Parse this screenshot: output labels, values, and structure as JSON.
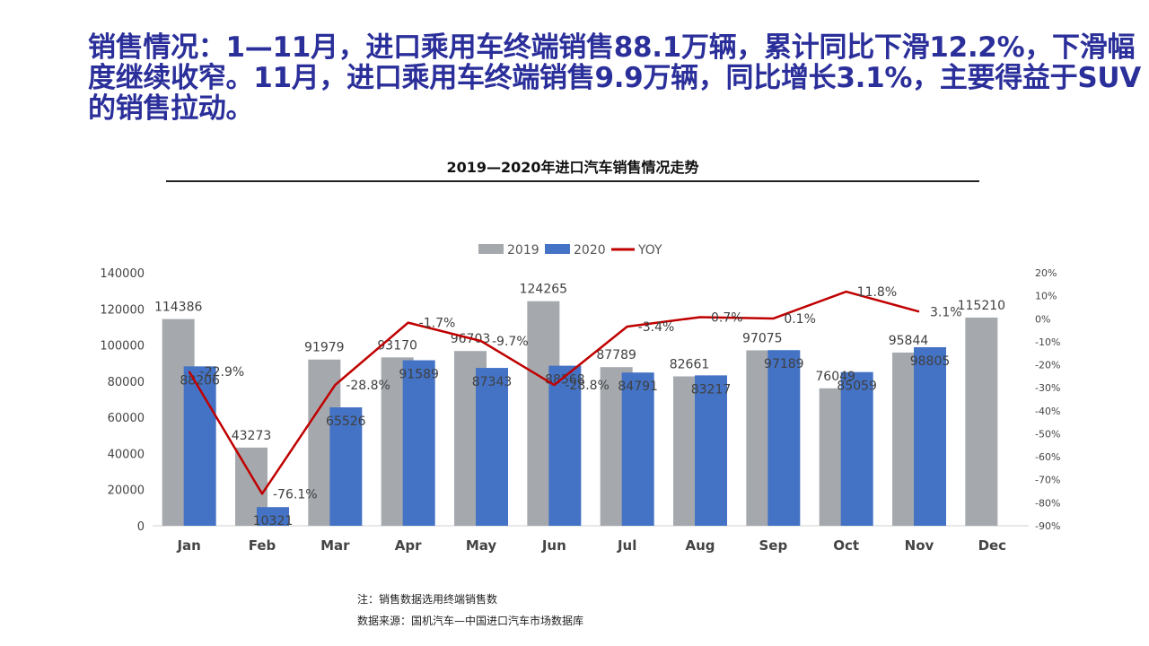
{
  "headline": "销售情况：1—11月，进口乘用车终端销售88.1万辆，累计同比下滑12.2%，下滑幅度继续收窄。11月，进口乘用车终端销售9.9万辆，同比增长3.1%，主要得益于SUV的销售拉动。",
  "notes": {
    "note": "注：销售数据选用终端销售数",
    "source": "数据来源：国机汽车—中国进口汽车市场数据库"
  },
  "chart_data": {
    "type": "bar",
    "title": "2019—2020年进口汽车销售情况走势",
    "categories": [
      "Jan",
      "Feb",
      "Mar",
      "Apr",
      "May",
      "Jun",
      "Jul",
      "Aug",
      "Sep",
      "Oct",
      "Nov",
      "Dec"
    ],
    "series": [
      {
        "name": "2019",
        "type": "bar",
        "color": "#a5a9ae",
        "values": [
          114386,
          43273,
          91979,
          93170,
          96703,
          124265,
          87789,
          82661,
          97075,
          76049,
          95844,
          115210
        ]
      },
      {
        "name": "2020",
        "type": "bar",
        "color": "#4472c4",
        "values": [
          88206,
          10321,
          65526,
          91589,
          87343,
          88568,
          84791,
          83217,
          97189,
          85059,
          98805,
          null
        ]
      },
      {
        "name": "YOY",
        "type": "line",
        "axis": "right",
        "color": "#c00000",
        "values": [
          -22.9,
          -76.1,
          -28.8,
          -1.7,
          -9.7,
          -28.8,
          -3.4,
          0.7,
          0.1,
          11.8,
          3.1,
          null
        ],
        "labels": [
          "-22.9%",
          "-76.1%",
          "-28.8%",
          "-1.7%",
          "-9.7%",
          "-28.8%",
          "-3.4%",
          "0.7%",
          "0.1%",
          "11.8%",
          "3.1%",
          ""
        ]
      }
    ],
    "bar_labels_2019": [
      "114386",
      "43273",
      "91979",
      "93170",
      "96703",
      "124265",
      "87789",
      "82661",
      "97075",
      "76049",
      "95844",
      "115210"
    ],
    "bar_labels_2020": [
      "88206",
      "10321",
      "65526",
      "91589",
      "87343",
      "88568",
      "84791",
      "83217",
      "97189",
      "85059",
      "98805",
      ""
    ],
    "y_left": {
      "min": 0,
      "max": 140000,
      "ticks": [
        "0",
        "20000",
        "40000",
        "60000",
        "80000",
        "100000",
        "120000",
        "140000"
      ]
    },
    "y_right": {
      "min": -90,
      "max": 20,
      "ticks": [
        "-90%",
        "-80%",
        "-70%",
        "-60%",
        "-50%",
        "-40%",
        "-30%",
        "-20%",
        "-10%",
        "0%",
        "10%",
        "20%"
      ]
    },
    "legend_placement": "top-center",
    "grid": false
  }
}
